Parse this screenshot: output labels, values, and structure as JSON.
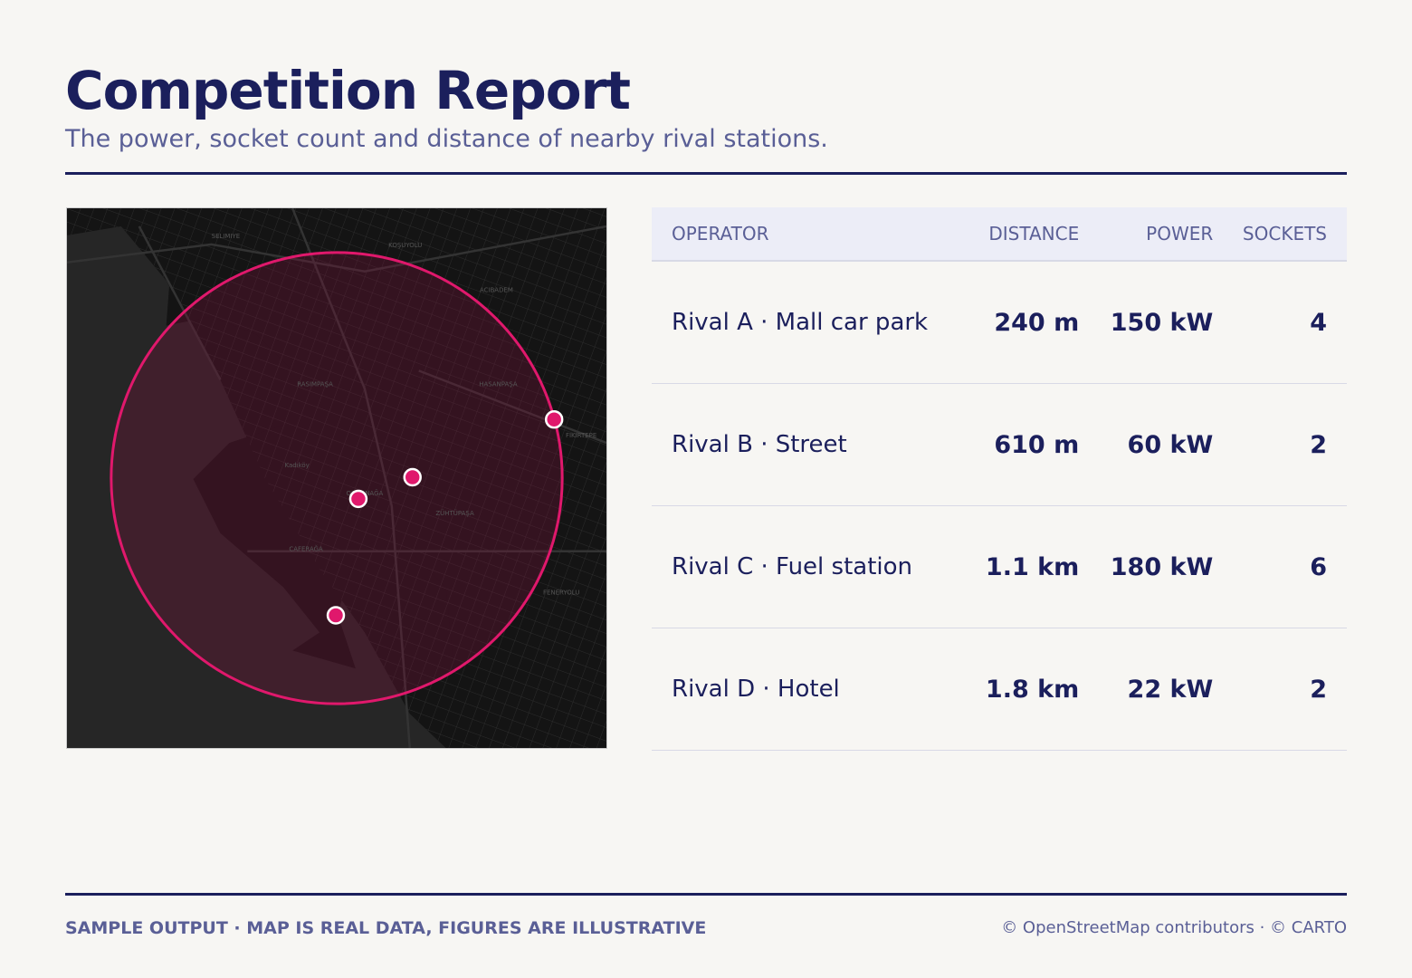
{
  "header": {
    "title": "Competition Report",
    "subtitle": "The power, socket count and distance of nearby rival stations."
  },
  "map": {
    "labels": [
      "Kadıköy",
      "RASIMPAŞA",
      "HASANPAŞA",
      "ACIBADEM",
      "KOŞUYOLU",
      "ZÜHTÜPAŞA",
      "CAFERAĞA",
      "OSMANAĞA",
      "FENERYOLU",
      "FIKIRTEPE",
      "SELIMIYE"
    ]
  },
  "table": {
    "columns": [
      "OPERATOR",
      "DISTANCE",
      "POWER",
      "SOCKETS"
    ],
    "rows": [
      [
        "Rival A · Mall car park",
        "240 m",
        "150 kW",
        "4"
      ],
      [
        "Rival B · Street",
        "610 m",
        "60 kW",
        "2"
      ],
      [
        "Rival C · Fuel station",
        "1.1 km",
        "180 kW",
        "6"
      ],
      [
        "Rival D · Hotel",
        "1.8 km",
        "22 kW",
        "2"
      ]
    ]
  },
  "footer": {
    "note": "SAMPLE OUTPUT · MAP IS REAL DATA, FIGURES ARE ILLUSTRATIVE",
    "credit": "© OpenStreetMap contributors · © CARTO"
  }
}
